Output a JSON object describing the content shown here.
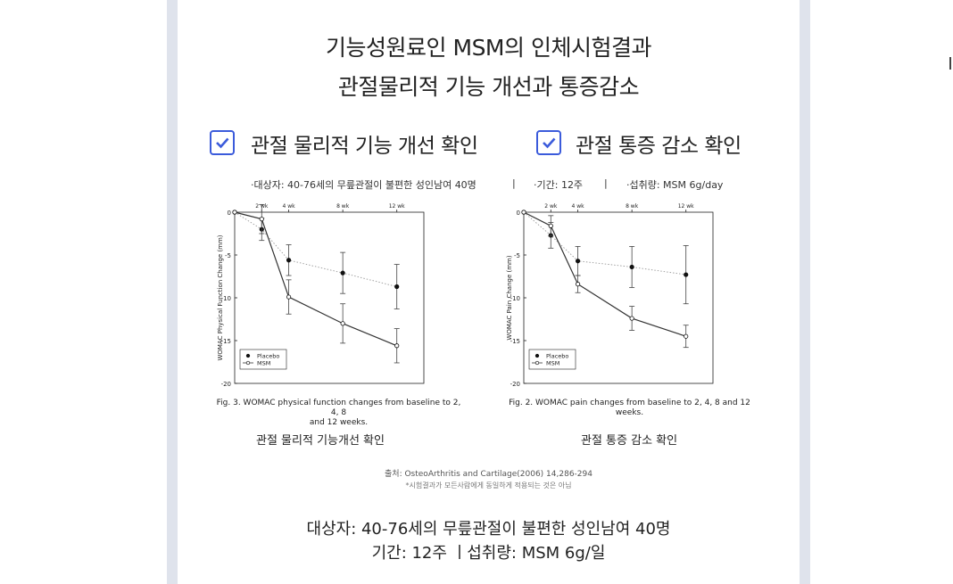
{
  "title_line1": "기능성원료인 MSM의 인체시험결과",
  "title_line2": "관절물리적 기능 개선과 통증감소",
  "check1_label": "관절 물리적 기능 개선 확인",
  "check2_label": "관절 통증 감소 확인",
  "meta": {
    "subjects": "·대상자: 40-76세의 무릎관절이 불편한 성인남여 40명",
    "sep1": "|",
    "period": "·기간: 12주",
    "sep2": "|",
    "dose": "·섭취량: MSM 6g/day"
  },
  "accent_color": "#3b5bdb",
  "chart_data": [
    {
      "type": "line",
      "ylabel": "WOMAC Physical Function Change (mm)",
      "top_ticks": [
        "2 wk",
        "4 wk",
        "8 wk",
        "12 wk"
      ],
      "x": [
        0,
        2,
        4,
        8,
        12
      ],
      "ylim": [
        -20,
        0
      ],
      "yticks": [
        "0",
        "-5",
        "-10",
        "-15",
        "-20"
      ],
      "series": [
        {
          "name": "Placebo",
          "marker": "filled",
          "values": [
            0,
            -2.0,
            -5.6,
            -7.1,
            -8.7
          ],
          "err": [
            0,
            1.3,
            1.8,
            2.4,
            2.6
          ]
        },
        {
          "name": "MSM",
          "marker": "open",
          "values": [
            0,
            -0.8,
            -9.9,
            -13.0,
            -15.6
          ],
          "err": [
            0,
            1.7,
            2.0,
            2.3,
            2.0
          ]
        }
      ],
      "caption": "Fig. 3. WOMAC physical function changes from baseline to 2, 4, 8 and 12 weeks.",
      "caption_line1": "Fig. 3. WOMAC physical function changes from baseline to 2, 4, 8",
      "caption_line2": "and 12 weeks.",
      "label": "관절 물리적 기능개선 확인"
    },
    {
      "type": "line",
      "ylabel": "WOMAC Pain Change (mm)",
      "top_ticks": [
        "2 wk",
        "4 wk",
        "8 wk",
        "12 wk"
      ],
      "x": [
        0,
        2,
        4,
        8,
        12
      ],
      "ylim": [
        -20,
        0
      ],
      "yticks": [
        "0",
        "-5",
        "-10",
        "-15",
        "-20"
      ],
      "series": [
        {
          "name": "Placebo",
          "marker": "filled",
          "values": [
            0,
            -2.7,
            -5.7,
            -6.4,
            -7.3
          ],
          "err": [
            0,
            1.5,
            1.7,
            2.4,
            3.4
          ]
        },
        {
          "name": "MSM",
          "marker": "open",
          "values": [
            0,
            -1.6,
            -8.4,
            -12.4,
            -14.5
          ],
          "err": [
            0,
            1.2,
            1.0,
            1.4,
            1.3
          ]
        }
      ],
      "caption": "Fig. 2. WOMAC pain changes from baseline to 2, 4, 8 and 12 weeks.",
      "caption_line1": "Fig. 2. WOMAC pain changes from baseline to 2, 4, 8 and 12",
      "caption_line2": "weeks.",
      "label": "관절 통증 감소 확인"
    }
  ],
  "source": "출처: OsteoArthritis and Cartilage(2006) 14,286-294",
  "note": "*시험결과가 모든사람에게 동일하게 적용되는 것은 아님",
  "bottom_line1": "대상자: 40-76세의 무릎관절이 불편한 성인남여 40명",
  "bottom_line2": "기간: 12주 ㅣ섭취량:  MSM 6g/일"
}
